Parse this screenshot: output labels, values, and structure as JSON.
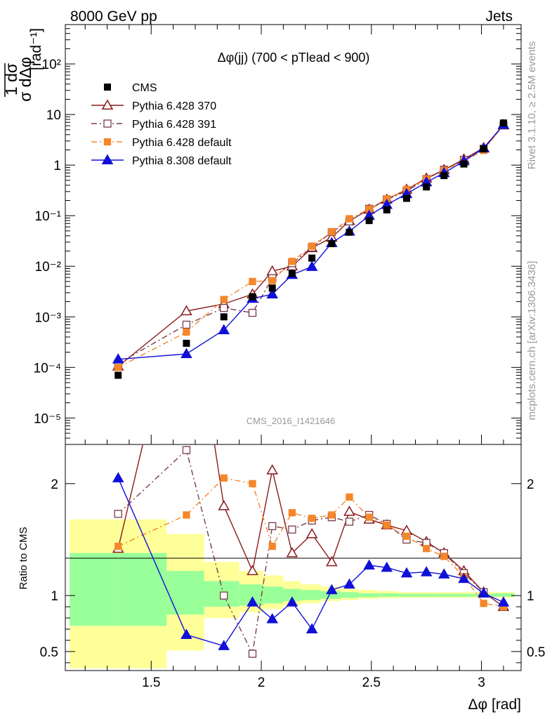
{
  "header": {
    "left": "8000 GeV pp",
    "right": "Jets",
    "side_rivet": "Rivet 3.1.10, ≥ 2.5M events",
    "side_mcplots": "mcplots.cern.ch [arXiv:1306.3436]"
  },
  "chart_data": {
    "type": "scatter",
    "title": "Δφ(jj) (700 < pTlead <  900)",
    "watermark": "CMS_2016_I1421646",
    "xlabel": "Δφ [rad]",
    "ylabel_main": "1/σ dσ/dΔφ [rad⁻¹]",
    "ylabel_ratio": "Ratio to CMS",
    "xlim": [
      1.11,
      3.18
    ],
    "main_ylim_log": [
      3e-06,
      600
    ],
    "main_yscale": "log",
    "ratio_ylim": [
      0.33,
      2.35
    ],
    "legend_position": "top-left",
    "grid": false,
    "x_ticks": [
      1.5,
      2,
      2.5,
      3
    ],
    "x_tick_labels": [
      "1.5",
      "2",
      "2.5",
      "3"
    ],
    "main_y_ticks": [
      1e-05,
      0.0001,
      0.001,
      0.01,
      0.1,
      1,
      10,
      100
    ],
    "main_y_tick_labels": [
      "10⁻⁵",
      "10⁻⁴",
      "10⁻³",
      "10⁻²",
      "10⁻¹",
      "1",
      "10",
      "10²"
    ],
    "ratio_y_ticks": [
      0.5,
      1,
      2
    ],
    "ratio_y_tick_labels": [
      "0.5",
      "1",
      "2"
    ],
    "x": [
      1.35,
      1.66,
      1.83,
      1.96,
      2.05,
      2.14,
      2.23,
      2.32,
      2.4,
      2.49,
      2.57,
      2.66,
      2.75,
      2.83,
      2.92,
      3.01,
      3.1
    ],
    "data": {
      "name": "CMS",
      "values": [
        7e-05,
        0.0003,
        0.001,
        0.0025,
        0.0037,
        0.0072,
        0.0145,
        0.028,
        0.047,
        0.08,
        0.13,
        0.22,
        0.37,
        0.62,
        1.05,
        2.1,
        6.8
      ]
    },
    "series": [
      {
        "name": "Pythia 6.428 370",
        "color": "#8b1a1a",
        "marker": "open-triangle",
        "dash": "solid",
        "values": [
          0.000105,
          0.0013,
          0.0018,
          0.0028,
          0.008,
          0.01,
          0.023,
          0.037,
          0.079,
          0.133,
          0.21,
          0.33,
          0.55,
          0.81,
          1.31,
          2.2,
          6.15
        ],
        "ratio": [
          1.42,
          4.0,
          1.8,
          1.22,
          2.12,
          1.38,
          1.55,
          1.3,
          1.75,
          1.68,
          1.63,
          1.58,
          1.48,
          1.38,
          1.22,
          1.03,
          0.9
        ]
      },
      {
        "name": "Pythia 6.428 391",
        "color": "#7a3b4a",
        "marker": "open-square",
        "dash": "dashdot",
        "values": [
          0.00012,
          0.0007,
          0.0015,
          0.0012,
          0.0058,
          0.0115,
          0.0235,
          0.0475,
          0.077,
          0.137,
          0.21,
          0.305,
          0.53,
          0.81,
          1.27,
          2.1,
          6.1
        ],
        "ratio": [
          1.73,
          2.3,
          1.0,
          0.48,
          1.62,
          1.59,
          1.67,
          1.7,
          1.66,
          1.72,
          1.64,
          1.5,
          1.47,
          1.38,
          1.2,
          1.03,
          0.9
        ]
      },
      {
        "name": "Pythia 6.428 default",
        "color": "#f5872a",
        "marker": "filled-square",
        "dash": "dashdot",
        "values": [
          0.0001,
          0.0005,
          0.0022,
          0.005,
          0.0052,
          0.0125,
          0.025,
          0.048,
          0.087,
          0.135,
          0.215,
          0.33,
          0.53,
          0.79,
          1.2,
          1.95,
          6.2
        ],
        "ratio": [
          1.44,
          1.72,
          2.05,
          2.0,
          1.44,
          1.74,
          1.69,
          1.72,
          1.88,
          1.7,
          1.63,
          1.53,
          1.42,
          1.35,
          1.17,
          0.93,
          0.9
        ]
      },
      {
        "name": "Pythia 8.308 default",
        "color": "#1010d8",
        "marker": "filled-triangle",
        "dash": "solid",
        "values": [
          0.000145,
          0.000185,
          0.00055,
          0.0023,
          0.0028,
          0.0068,
          0.0098,
          0.029,
          0.049,
          0.1,
          0.165,
          0.27,
          0.46,
          0.7,
          1.2,
          2.15,
          6.3
        ],
        "ratio": [
          2.05,
          0.65,
          0.55,
          0.94,
          0.79,
          0.94,
          0.7,
          1.05,
          1.1,
          1.27,
          1.25,
          1.2,
          1.21,
          1.19,
          1.15,
          1.02,
          0.94
        ]
      }
    ],
    "ratio_bands": {
      "edges": [
        1.13,
        1.35,
        1.57,
        1.74,
        1.9,
        2.01,
        2.1,
        2.18,
        2.27,
        2.36,
        2.44,
        2.53,
        2.62,
        2.7,
        2.79,
        2.88,
        2.97,
        3.06,
        3.15
      ],
      "inner": [
        0.73,
        1.38,
        0.73,
        1.38,
        0.83,
        1.22,
        0.9,
        1.13,
        0.91,
        1.1,
        0.93,
        1.08,
        0.95,
        1.06,
        0.96,
        1.05,
        0.97,
        1.04,
        0.98,
        1.03,
        0.985,
        1.02,
        0.99,
        1.02,
        0.99,
        1.015,
        0.99,
        1.015,
        0.99,
        1.015,
        0.99,
        1.015,
        0.99,
        1.015,
        0.99,
        1.02
      ],
      "outer": [
        0.35,
        1.68,
        0.35,
        1.68,
        0.51,
        1.55,
        0.8,
        1.3,
        0.85,
        1.22,
        0.88,
        1.18,
        0.91,
        1.13,
        0.93,
        1.1,
        0.95,
        1.08,
        0.96,
        1.06,
        0.97,
        1.05,
        0.975,
        1.04,
        0.98,
        1.03,
        0.98,
        1.03,
        0.98,
        1.03,
        0.98,
        1.03,
        0.98,
        1.03,
        0.98,
        1.03
      ]
    }
  }
}
